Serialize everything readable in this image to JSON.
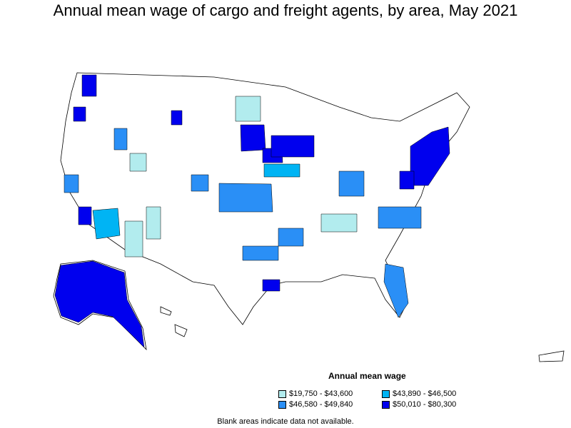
{
  "title": "Annual mean wage of cargo and freight agents, by area, May 2021",
  "legend": {
    "title": "Annual mean wage",
    "items": [
      {
        "label": "$19,750 - $43,600",
        "color": "#b2ecee"
      },
      {
        "label": "$43,890 - $46,500",
        "color": "#00b4f4"
      },
      {
        "label": "$46,580 - $49,840",
        "color": "#2a8ff6"
      },
      {
        "label": "$50,010 - $80,300",
        "color": "#0000ee"
      }
    ]
  },
  "footnote": "Blank areas indicate data not available."
}
